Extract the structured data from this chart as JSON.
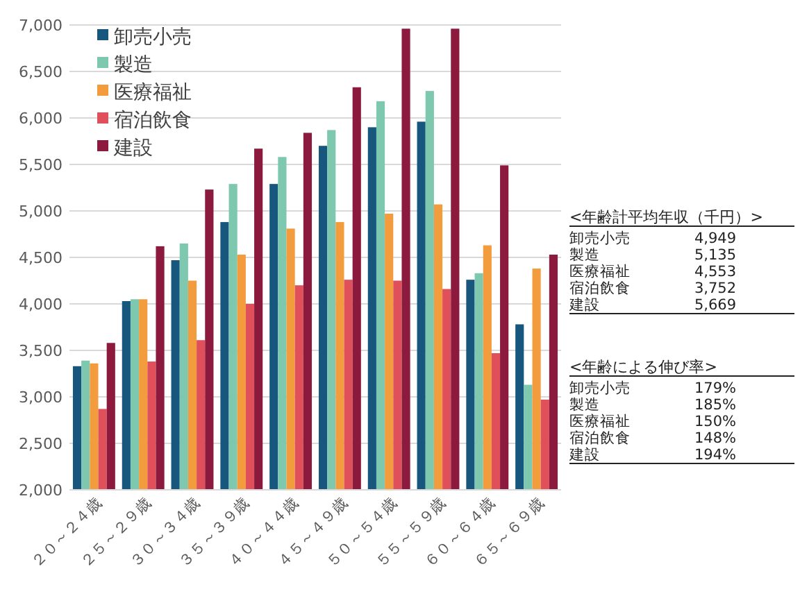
{
  "chart_data": {
    "type": "bar",
    "categories": [
      "２０～２４歳",
      "２５～２９歳",
      "３０～３４歳",
      "３５～３９歳",
      "４０～４４歳",
      "４５～４９歳",
      "５０～５４歳",
      "５５～５９歳",
      "６０～６４歳",
      "６５～６９歳"
    ],
    "series": [
      {
        "name": "卸売小売",
        "color": "#17577e",
        "values": [
          3330,
          4030,
          4470,
          4880,
          5290,
          5700,
          5900,
          5960,
          4260,
          3780
        ]
      },
      {
        "name": "製造",
        "color": "#7ec8b0",
        "values": [
          3390,
          4050,
          4650,
          5290,
          5580,
          5870,
          6180,
          6290,
          4330,
          3130
        ]
      },
      {
        "name": "医療福祉",
        "color": "#f39c3e",
        "values": [
          3360,
          4050,
          4250,
          4530,
          4810,
          4880,
          4970,
          5070,
          4630,
          4380
        ]
      },
      {
        "name": "宿泊飲食",
        "color": "#e0505a",
        "values": [
          2870,
          3380,
          3610,
          4000,
          4200,
          4260,
          4250,
          4160,
          3470,
          2970
        ]
      },
      {
        "name": "建設",
        "color": "#8b1a3e",
        "values": [
          3580,
          4620,
          5230,
          5670,
          5840,
          6330,
          6960,
          6960,
          5490,
          4530
        ]
      }
    ],
    "ylim": [
      2000,
      7000
    ],
    "yticks": [
      {
        "value": 2000,
        "label": "2,000"
      },
      {
        "value": 2500,
        "label": "2,500"
      },
      {
        "value": 3000,
        "label": "3,000"
      },
      {
        "value": 3500,
        "label": "3,500"
      },
      {
        "value": 4000,
        "label": "4,000"
      },
      {
        "value": 4500,
        "label": "4,500"
      },
      {
        "value": 5000,
        "label": "5,000"
      },
      {
        "value": 5500,
        "label": "5,500"
      },
      {
        "value": 6000,
        "label": "6,000"
      },
      {
        "value": 6500,
        "label": "6,500"
      },
      {
        "value": 7000,
        "label": "7,000"
      }
    ],
    "grid": "y",
    "legend": "top left",
    "annotations": [
      "<年齢計平均年収（千円）>",
      "卸売小売",
      "4,949",
      "製造",
      "5,135",
      "医療福祉",
      "4,553",
      "宿泊飲食",
      "3,752",
      "建設",
      "5,669",
      "<年齢による伸び率>",
      "卸売小売",
      "179%",
      "製造",
      "185%",
      "医療福祉",
      "150%",
      "宿泊飲食",
      "148%",
      "建設",
      "194%"
    ]
  }
}
